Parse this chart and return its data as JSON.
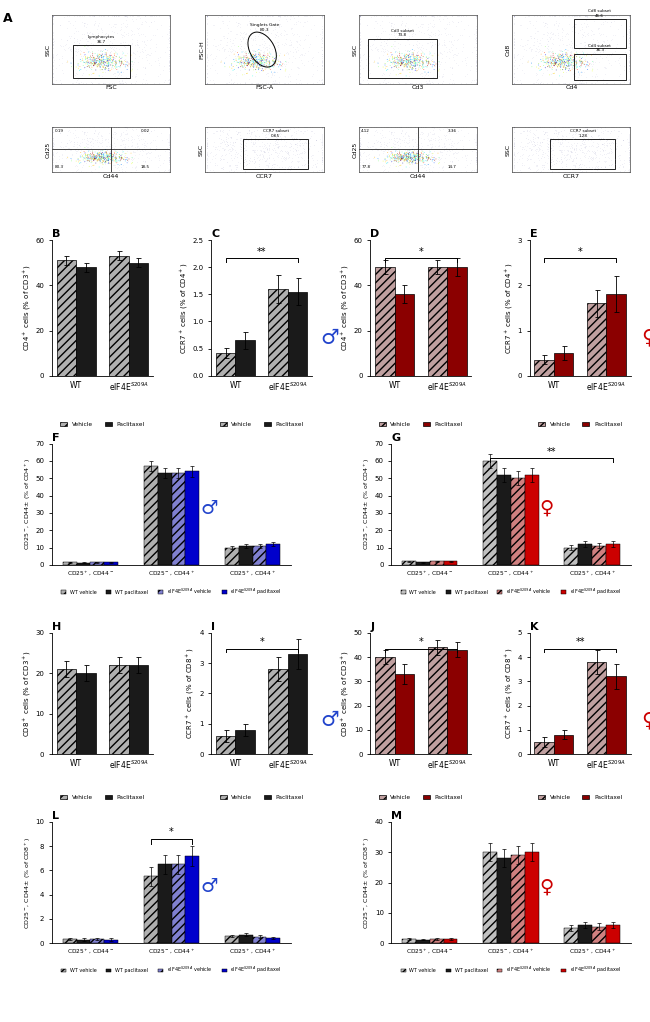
{
  "panel_B": {
    "title": "B",
    "ylabel": "CD4$^+$ cells (% of CD3$^+$)",
    "ylim": [
      0,
      60
    ],
    "yticks": [
      0,
      20,
      40,
      60
    ],
    "groups": [
      "WT",
      "eIF4E$^{S209A}$"
    ],
    "bars": {
      "Vehicle": [
        51,
        53
      ],
      "Paclitaxel": [
        48,
        50
      ]
    },
    "errors": {
      "Vehicle": [
        2,
        2
      ],
      "Paclitaxel": [
        2,
        2
      ]
    },
    "colors": {
      "Vehicle": "#b0b0b0",
      "Paclitaxel": "#1a1a1a"
    },
    "significance": null
  },
  "panel_C": {
    "title": "C",
    "ylabel": "CCR7$^+$ cells (% of CD4$^+$)",
    "ylim": [
      0,
      2.5
    ],
    "yticks": [
      0.0,
      0.5,
      1.0,
      1.5,
      2.0,
      2.5
    ],
    "groups": [
      "WT",
      "eIF4E$^{S209A}$"
    ],
    "bars": {
      "Vehicle": [
        0.42,
        1.6
      ],
      "Paclitaxel": [
        0.65,
        1.55
      ]
    },
    "errors": {
      "Vehicle": [
        0.1,
        0.25
      ],
      "Paclitaxel": [
        0.15,
        0.25
      ]
    },
    "colors": {
      "Vehicle": "#b0b0b0",
      "Paclitaxel": "#1a1a1a"
    },
    "significance": "**",
    "sig_groups": [
      0,
      1
    ]
  },
  "panel_D": {
    "title": "D",
    "ylabel": "CD4$^+$ cells (% of CD3$^+$)",
    "ylim": [
      0,
      60
    ],
    "yticks": [
      0,
      20,
      40,
      60
    ],
    "groups": [
      "WT",
      "eIF4E$^{S209A}$"
    ],
    "bars": {
      "Vehicle": [
        48,
        48
      ],
      "Paclitaxel": [
        36,
        48
      ]
    },
    "errors": {
      "Vehicle": [
        3,
        3
      ],
      "Paclitaxel": [
        4,
        4
      ]
    },
    "colors": {
      "Vehicle": "#c0a0a0",
      "Paclitaxel": "#8b0000"
    },
    "significance": "*",
    "sig_groups": [
      0,
      1
    ]
  },
  "panel_E": {
    "title": "E",
    "ylabel": "CCR7$^+$ cells (% of CD4$^+$)",
    "ylim": [
      0,
      3
    ],
    "yticks": [
      0,
      1,
      2,
      3
    ],
    "groups": [
      "WT",
      "eIF4E$^{S209A}$"
    ],
    "bars": {
      "Vehicle": [
        0.35,
        1.6
      ],
      "Paclitaxel": [
        0.5,
        1.8
      ]
    },
    "errors": {
      "Vehicle": [
        0.1,
        0.3
      ],
      "Paclitaxel": [
        0.15,
        0.4
      ]
    },
    "colors": {
      "Vehicle": "#c0a0a0",
      "Paclitaxel": "#8b0000"
    },
    "significance": "*",
    "sig_groups": [
      0,
      1
    ]
  },
  "panel_F": {
    "title": "F",
    "ylabel": "CD25$^-$, CD44$\\pm$ (% of CD4$^+$)",
    "ylim": [
      0,
      70
    ],
    "yticks": [
      0,
      10,
      20,
      30,
      40,
      50,
      60,
      70
    ],
    "subgroups": [
      "CD25$^+$, CD44$^-$",
      "CD25$^-$, CD44$^+$",
      "CD25$^+$, CD44$^+$"
    ],
    "bars": {
      "WT vehicle": [
        1.5,
        57,
        10
      ],
      "WT paclitaxel": [
        1.2,
        53,
        11
      ],
      "eIF4ES209A vehicle": [
        1.5,
        53,
        11
      ],
      "eIF4ES209A paclitaxel": [
        1.5,
        54,
        12
      ]
    },
    "errors": {
      "WT vehicle": [
        0.3,
        3,
        1
      ],
      "WT paclitaxel": [
        0.3,
        3,
        1
      ],
      "eIF4ES209A vehicle": [
        0.3,
        3,
        1
      ],
      "eIF4ES209A paclitaxel": [
        0.3,
        3,
        1
      ]
    },
    "colors": {
      "WT vehicle": "#b0b0b0",
      "WT paclitaxel": "#1a1a1a",
      "eIF4ES209A vehicle": "#8080d0",
      "eIF4ES209A paclitaxel": "#0000cc"
    },
    "legend_labels": [
      "WT vehicle",
      "WT paclitaxel",
      "eIF4E$^{S209A}$ vehicle",
      "eIF4E$^{S209A}$ paclitaxel"
    ],
    "significance": null
  },
  "panel_G": {
    "title": "G",
    "ylabel": "CD25$^-$, CD44$\\pm$ (% of CD4$^+$)",
    "ylim": [
      0,
      70
    ],
    "yticks": [
      0,
      10,
      20,
      30,
      40,
      50,
      60,
      70
    ],
    "subgroups": [
      "CD25$^+$, CD44$^-$",
      "CD25$^-$, CD44$^+$",
      "CD25$^+$, CD44$^+$"
    ],
    "bars": {
      "WT vehicle": [
        2,
        60,
        10
      ],
      "WT paclitaxel": [
        1.5,
        52,
        12
      ],
      "eIF4ES209A vehicle": [
        2,
        50,
        11
      ],
      "eIF4ES209A paclitaxel": [
        2,
        52,
        12
      ]
    },
    "errors": {
      "WT vehicle": [
        0.3,
        4,
        1.5
      ],
      "WT paclitaxel": [
        0.3,
        4,
        1.5
      ],
      "eIF4ES209A vehicle": [
        0.3,
        4,
        1.5
      ],
      "eIF4ES209A paclitaxel": [
        0.3,
        4,
        1.5
      ]
    },
    "colors": {
      "WT vehicle": "#c0c0c0",
      "WT paclitaxel": "#1a1a1a",
      "eIF4ES209A vehicle": "#d08080",
      "eIF4ES209A paclitaxel": "#cc0000"
    },
    "legend_labels": [
      "WT vehicle",
      "WT paclitaxel",
      "eIF4E$^{S209A}$ vehicle",
      "eIF4E$^{S209A}$ paclitaxel"
    ],
    "significance": "**",
    "sig_groups": [
      1,
      2
    ]
  },
  "panel_H": {
    "title": "H",
    "ylabel": "CD8$^+$ cells (% of CD3$^+$)",
    "ylim": [
      0,
      30
    ],
    "yticks": [
      0,
      10,
      20,
      30
    ],
    "groups": [
      "WT",
      "eIF4E$^{S209A}$"
    ],
    "bars": {
      "Vehicle": [
        21,
        22
      ],
      "Paclitaxel": [
        20,
        22
      ]
    },
    "errors": {
      "Vehicle": [
        2,
        2
      ],
      "Paclitaxel": [
        2,
        2
      ]
    },
    "colors": {
      "Vehicle": "#b0b0b0",
      "Paclitaxel": "#1a1a1a"
    },
    "significance": null
  },
  "panel_I": {
    "title": "I",
    "ylabel": "CCR7$^+$ cells (% of CD8$^+$)",
    "ylim": [
      0,
      4
    ],
    "yticks": [
      0,
      1,
      2,
      3,
      4
    ],
    "groups": [
      "WT",
      "eIF4E$^{S209A}$"
    ],
    "bars": {
      "Vehicle": [
        0.6,
        2.8
      ],
      "Paclitaxel": [
        0.8,
        3.3
      ]
    },
    "errors": {
      "Vehicle": [
        0.2,
        0.4
      ],
      "Paclitaxel": [
        0.2,
        0.5
      ]
    },
    "colors": {
      "Vehicle": "#b0b0b0",
      "Paclitaxel": "#1a1a1a"
    },
    "significance": "*",
    "sig_groups": [
      0,
      1
    ]
  },
  "panel_J": {
    "title": "J",
    "ylabel": "CD8$^+$ cells (% of CD3$^+$)",
    "ylim": [
      0,
      50
    ],
    "yticks": [
      0,
      10,
      20,
      30,
      40,
      50
    ],
    "groups": [
      "WT",
      "eIF4E$^{S209A}$"
    ],
    "bars": {
      "Vehicle": [
        40,
        44
      ],
      "Paclitaxel": [
        33,
        43
      ]
    },
    "errors": {
      "Vehicle": [
        3,
        3
      ],
      "Paclitaxel": [
        4,
        3
      ]
    },
    "colors": {
      "Vehicle": "#c0a0a0",
      "Paclitaxel": "#8b0000"
    },
    "significance": "*",
    "sig_groups": [
      0,
      1
    ]
  },
  "panel_K": {
    "title": "K",
    "ylabel": "CCR7$^+$ cells (% of CD8$^+$)",
    "ylim": [
      0,
      5
    ],
    "yticks": [
      0,
      1,
      2,
      3,
      4,
      5
    ],
    "groups": [
      "WT",
      "eIF4E$^{S209A}$"
    ],
    "bars": {
      "Vehicle": [
        0.5,
        3.8
      ],
      "Paclitaxel": [
        0.8,
        3.2
      ]
    },
    "errors": {
      "Vehicle": [
        0.2,
        0.5
      ],
      "Paclitaxel": [
        0.2,
        0.5
      ]
    },
    "colors": {
      "Vehicle": "#c0a0a0",
      "Paclitaxel": "#8b0000"
    },
    "significance": "**",
    "sig_groups": [
      0,
      1
    ]
  },
  "panel_L": {
    "title": "L",
    "ylabel": "CD25$^-$, CD44$\\pm$ (% of CD8$^+$)",
    "ylim": [
      0,
      10
    ],
    "yticks": [
      0,
      2,
      4,
      6,
      8,
      10
    ],
    "subgroups": [
      "CD25$^+$, CD44$^-$",
      "CD25$^-$, CD44$^+$",
      "CD25$^+$, CD44$^+$"
    ],
    "bars": {
      "WT vehicle": [
        0.35,
        5.5,
        0.6
      ],
      "WT paclitaxel": [
        0.3,
        6.5,
        0.7
      ],
      "eIF4ES209A vehicle": [
        0.35,
        6.5,
        0.55
      ],
      "eIF4ES209A paclitaxel": [
        0.3,
        7.2,
        0.45
      ]
    },
    "errors": {
      "WT vehicle": [
        0.1,
        0.8,
        0.1
      ],
      "WT paclitaxel": [
        0.1,
        0.8,
        0.1
      ],
      "eIF4ES209A vehicle": [
        0.1,
        0.8,
        0.1
      ],
      "eIF4ES209A paclitaxel": [
        0.1,
        0.8,
        0.1
      ]
    },
    "colors": {
      "WT vehicle": "#b0b0b0",
      "WT paclitaxel": "#1a1a1a",
      "eIF4ES209A vehicle": "#8080d0",
      "eIF4ES209A paclitaxel": "#0000cc"
    },
    "legend_labels": [
      "WT vehicle",
      "WT paclitaxel",
      "eIF4E$^{S209A}$ vehicle",
      "eIF4E$^{S209A}$ paclitaxel"
    ],
    "significance": "*",
    "sig_subgroup": 1
  },
  "panel_M": {
    "title": "M",
    "ylabel": "CD25$^-$, CD44$\\pm$ (% of CD8$^+$)",
    "ylim": [
      0,
      40
    ],
    "yticks": [
      0,
      10,
      20,
      30,
      40
    ],
    "subgroups": [
      "CD25$^+$, CD44$^-$",
      "CD25$^-$, CD44$^+$",
      "CD25$^+$, CD44$^+$"
    ],
    "bars": {
      "WT vehicle": [
        1.5,
        30,
        5
      ],
      "WT paclitaxel": [
        1.2,
        28,
        6
      ],
      "eIF4ES209A vehicle": [
        1.5,
        29,
        5.5
      ],
      "eIF4ES209A paclitaxel": [
        1.3,
        30,
        6
      ]
    },
    "errors": {
      "WT vehicle": [
        0.3,
        3,
        1
      ],
      "WT paclitaxel": [
        0.3,
        3,
        1
      ],
      "eIF4ES209A vehicle": [
        0.3,
        3,
        1
      ],
      "eIF4ES209A paclitaxel": [
        0.3,
        3,
        1
      ]
    },
    "colors": {
      "WT vehicle": "#c0c0c0",
      "WT paclitaxel": "#1a1a1a",
      "eIF4ES209A vehicle": "#d08080",
      "eIF4ES209A paclitaxel": "#cc0000"
    },
    "legend_labels": [
      "WT vehicle",
      "WT paclitaxel",
      "eIF4E$^{S209A}$ vehicle",
      "eIF4E$^{S209A}$ paclitaxel"
    ],
    "significance": null
  }
}
